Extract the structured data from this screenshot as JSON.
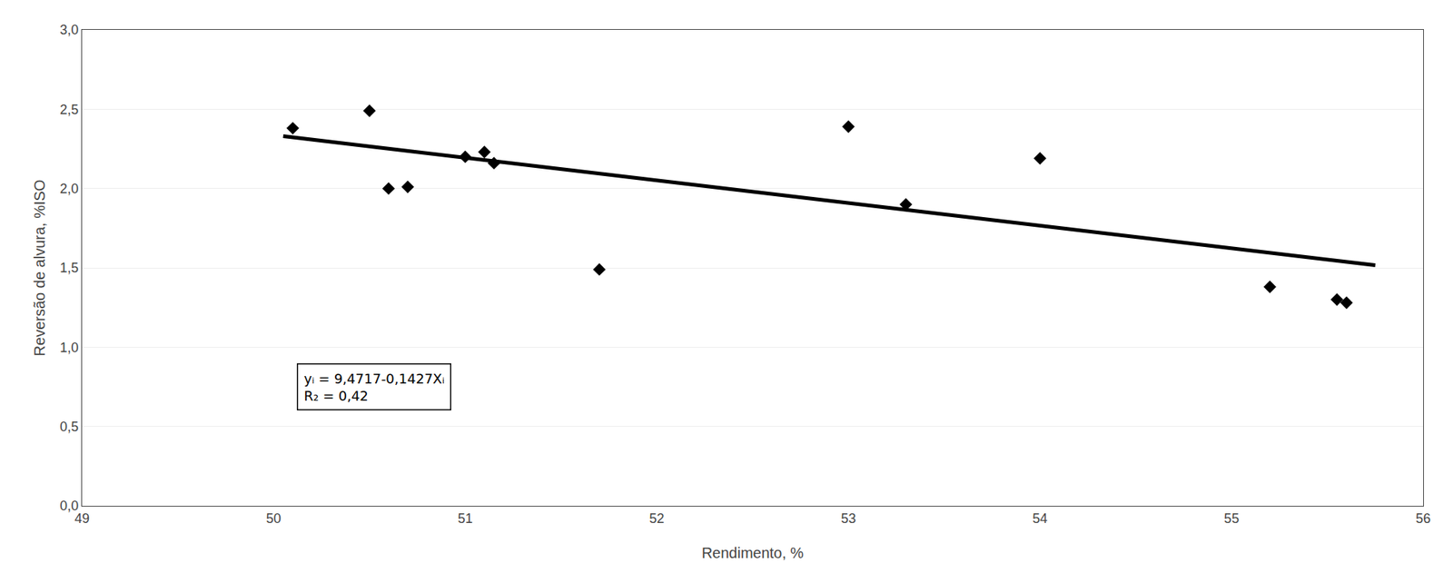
{
  "chart_data": {
    "type": "scatter",
    "xlabel": "Rendimento, %",
    "ylabel": "Reversão de alvura, %ISO",
    "series": [
      {
        "type": "scatter",
        "marker": "diamond",
        "color": "#000000",
        "x": [
          50.1,
          50.5,
          50.6,
          50.7,
          51.0,
          51.1,
          51.15,
          51.7,
          53.0,
          53.3,
          54.0,
          55.2,
          55.55,
          55.6
        ],
        "values": [
          2.38,
          2.49,
          2.0,
          2.01,
          2.2,
          2.23,
          2.16,
          1.49,
          2.39,
          1.9,
          2.19,
          1.38,
          1.3,
          1.28
        ]
      },
      {
        "type": "line",
        "line_style": "solid",
        "color": "#000000",
        "x": [
          50.05,
          55.75
        ],
        "values": [
          2.329565,
          1.516175
        ]
      }
    ],
    "xlim": [
      49,
      56
    ],
    "ylim": [
      0.0,
      3.0
    ],
    "xticks": [
      49,
      50,
      51,
      52,
      53,
      54,
      55,
      56
    ],
    "yticks": [
      {
        "value": 0.0,
        "label": "0,0"
      },
      {
        "value": 0.5,
        "label": "0,5"
      },
      {
        "value": 1.0,
        "label": "1,0"
      },
      {
        "value": 1.5,
        "label": "1,5"
      },
      {
        "value": 2.0,
        "label": "2,0"
      },
      {
        "value": 2.5,
        "label": "2,5"
      },
      {
        "value": 3.0,
        "label": "3,0"
      }
    ],
    "grid": "y",
    "annotations": [
      {
        "lines": [
          "yᵢ = 9,4717-0,1427Xᵢ",
          "R₂ = 0,42"
        ]
      }
    ]
  }
}
